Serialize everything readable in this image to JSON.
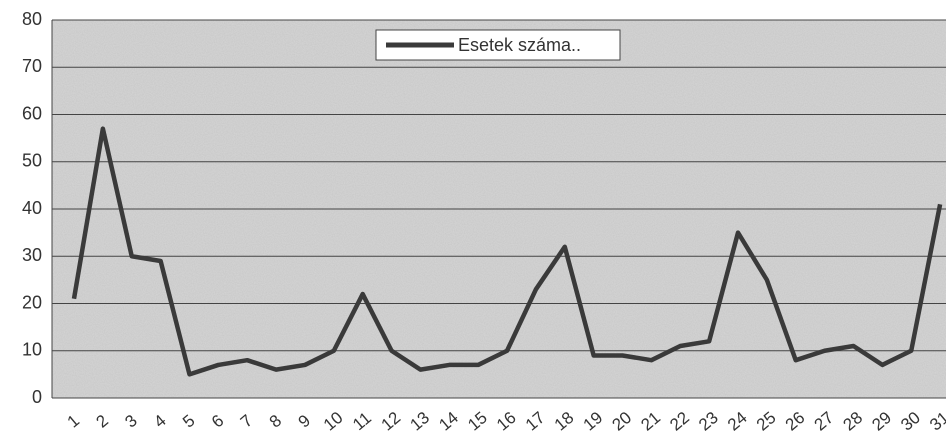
{
  "chart_data": {
    "type": "line",
    "categories": [
      "1",
      "2",
      "3",
      "4",
      "5",
      "6",
      "7",
      "8",
      "9",
      "10",
      "11",
      "12",
      "13",
      "14",
      "15",
      "16",
      "17",
      "18",
      "19",
      "20",
      "21",
      "22",
      "23",
      "24",
      "25",
      "26",
      "27",
      "28",
      "29",
      "30",
      "31"
    ],
    "series": [
      {
        "name": "Esetek száma..",
        "color": "#3a3a3a",
        "values": [
          21,
          57,
          30,
          29,
          5,
          7,
          8,
          6,
          7,
          10,
          22,
          10,
          6,
          7,
          7,
          10,
          23,
          32,
          9,
          9,
          8,
          11,
          12,
          35,
          25,
          8,
          10,
          11,
          7,
          10,
          41
        ]
      }
    ],
    "ylim": [
      0,
      80
    ],
    "yticks": [
      0,
      10,
      20,
      30,
      40,
      50,
      60,
      70,
      80
    ],
    "grid": true,
    "legend": "top"
  }
}
